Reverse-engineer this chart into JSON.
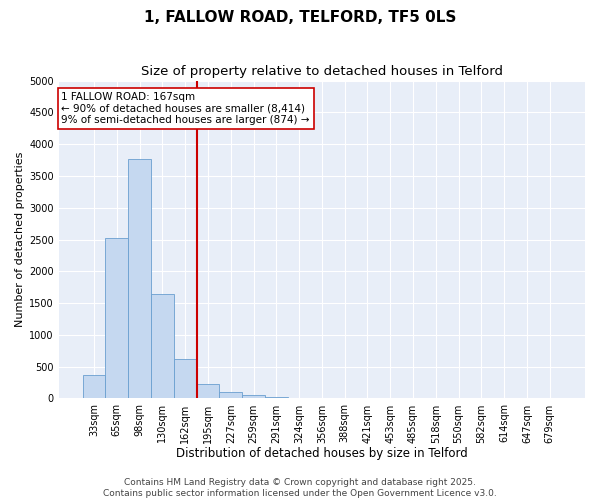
{
  "title": "1, FALLOW ROAD, TELFORD, TF5 0LS",
  "subtitle": "Size of property relative to detached houses in Telford",
  "xlabel": "Distribution of detached houses by size in Telford",
  "ylabel": "Number of detached properties",
  "categories": [
    "33sqm",
    "65sqm",
    "98sqm",
    "130sqm",
    "162sqm",
    "195sqm",
    "227sqm",
    "259sqm",
    "291sqm",
    "324sqm",
    "356sqm",
    "388sqm",
    "421sqm",
    "453sqm",
    "485sqm",
    "518sqm",
    "550sqm",
    "582sqm",
    "614sqm",
    "647sqm",
    "679sqm"
  ],
  "values": [
    375,
    2530,
    3760,
    1650,
    620,
    220,
    100,
    55,
    30,
    12,
    5,
    3,
    2,
    1,
    1,
    0,
    0,
    0,
    0,
    0,
    0
  ],
  "bar_color": "#c5d8f0",
  "bar_edge_color": "#6a9fd0",
  "vline_color": "#cc0000",
  "annotation_text": "1 FALLOW ROAD: 167sqm\n← 90% of detached houses are smaller (8,414)\n9% of semi-detached houses are larger (874) →",
  "annotation_box_color": "#ffffff",
  "annotation_box_edge": "#cc0000",
  "ylim": [
    0,
    5000
  ],
  "yticks": [
    0,
    500,
    1000,
    1500,
    2000,
    2500,
    3000,
    3500,
    4000,
    4500,
    5000
  ],
  "fig_bg_color": "#ffffff",
  "plot_bg_color": "#e8eef8",
  "grid_color": "#ffffff",
  "footer_line1": "Contains HM Land Registry data © Crown copyright and database right 2025.",
  "footer_line2": "Contains public sector information licensed under the Open Government Licence v3.0.",
  "title_fontsize": 11,
  "subtitle_fontsize": 9.5,
  "xlabel_fontsize": 8.5,
  "ylabel_fontsize": 8,
  "tick_fontsize": 7,
  "annotation_fontsize": 7.5,
  "footer_fontsize": 6.5
}
